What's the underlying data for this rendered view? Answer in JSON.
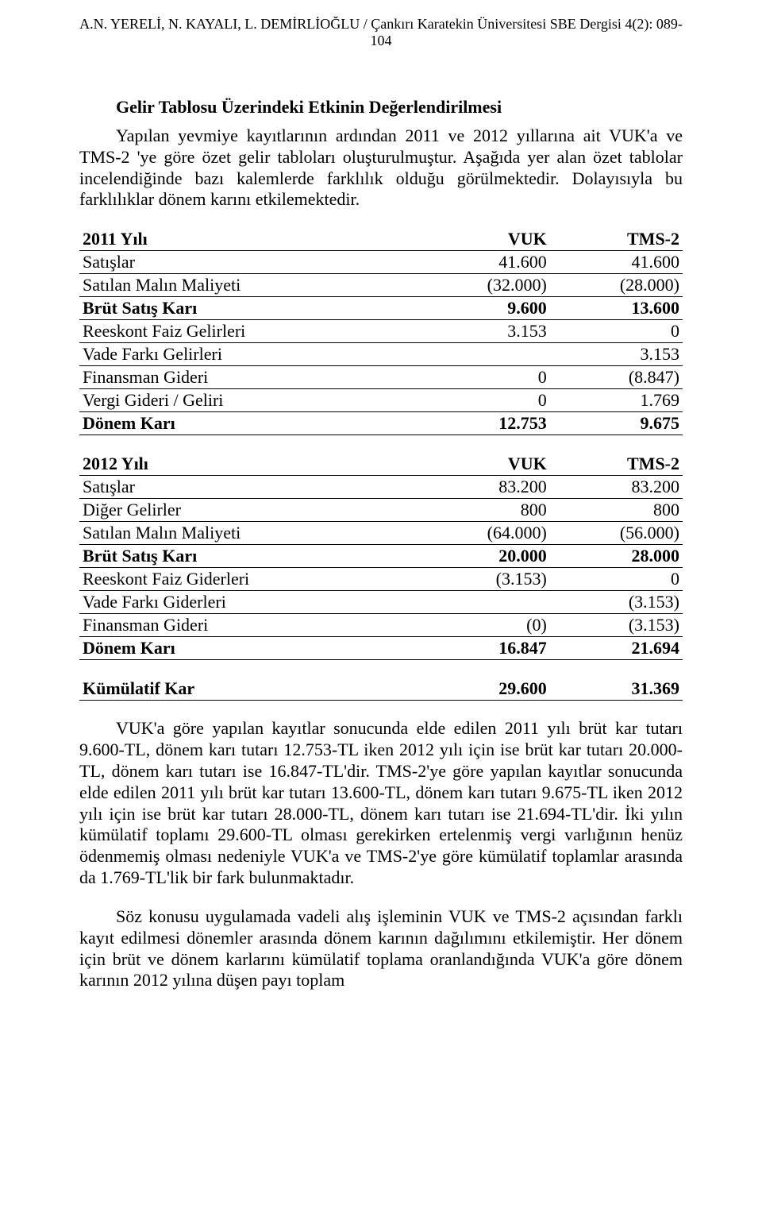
{
  "header": {
    "text": "A.N. YERELİ, N. KAYALI, L. DEMİRLİOĞLU / Çankırı Karatekin Üniversitesi SBE Dergisi 4(2): 089-104"
  },
  "section": {
    "title": "Gelir Tablosu Üzerindeki Etkinin Değerlendirilmesi",
    "intro": "Yapılan yevmiye kayıtlarının ardından 2011 ve 2012 yıllarına ait VUK'a ve TMS-2 'ye göre özet gelir tabloları oluşturulmuştur. Aşağıda yer alan özet tablolar incelendiğinde bazı kalemlerde farklılık olduğu görülmektedir. Dolayısıyla bu farklılıklar dönem karını etkilemektedir."
  },
  "table2011": {
    "title": "2011 Yılı",
    "col1": "VUK",
    "col2": "TMS-2",
    "rows": [
      {
        "label": "Satışlar",
        "v1": "41.600",
        "v2": "41.600",
        "bold": false
      },
      {
        "label": "Satılan Malın Maliyeti",
        "v1": "(32.000)",
        "v2": "(28.000)",
        "bold": false
      },
      {
        "label": "Brüt Satış Karı",
        "v1": "9.600",
        "v2": "13.600",
        "bold": true
      },
      {
        "label": "Reeskont Faiz Gelirleri",
        "v1": "3.153",
        "v2": "0",
        "bold": false
      },
      {
        "label": "Vade Farkı Gelirleri",
        "v1": "",
        "v2": "3.153",
        "bold": false
      },
      {
        "label": "Finansman Gideri",
        "v1": "0",
        "v2": "(8.847)",
        "bold": false
      },
      {
        "label": "Vergi Gideri / Geliri",
        "v1": "0",
        "v2": "1.769",
        "bold": false
      },
      {
        "label": "Dönem Karı",
        "v1": "12.753",
        "v2": "9.675",
        "bold": true
      }
    ]
  },
  "table2012": {
    "title": "2012 Yılı",
    "col1": "VUK",
    "col2": "TMS-2",
    "rows": [
      {
        "label": "Satışlar",
        "v1": "83.200",
        "v2": "83.200",
        "bold": false
      },
      {
        "label": "Diğer Gelirler",
        "v1": "800",
        "v2": "800",
        "bold": false
      },
      {
        "label": "Satılan Malın Maliyeti",
        "v1": "(64.000)",
        "v2": "(56.000)",
        "bold": false
      },
      {
        "label": "Brüt Satış Karı",
        "v1": "20.000",
        "v2": "28.000",
        "bold": true
      },
      {
        "label": "Reeskont Faiz Giderleri",
        "v1": "(3.153)",
        "v2": "0",
        "bold": false
      },
      {
        "label": "Vade Farkı Giderleri",
        "v1": "",
        "v2": "(3.153)",
        "bold": false
      },
      {
        "label": "Finansman Gideri",
        "v1": "(0)",
        "v2": "(3.153)",
        "bold": false
      },
      {
        "label": "Dönem Karı",
        "v1": "16.847",
        "v2": "21.694",
        "bold": true
      }
    ]
  },
  "tableKumulatif": {
    "rows": [
      {
        "label": "Kümülatif Kar",
        "v1": "29.600",
        "v2": "31.369",
        "bold": true
      }
    ]
  },
  "para1": "VUK'a göre yapılan kayıtlar sonucunda elde edilen 2011 yılı brüt kar tutarı 9.600-TL, dönem karı tutarı 12.753-TL iken 2012 yılı için ise brüt kar tutarı 20.000-TL, dönem karı tutarı ise 16.847-TL'dir. TMS-2'ye göre yapılan kayıtlar sonucunda elde edilen 2011 yılı brüt kar tutarı 13.600-TL, dönem karı tutarı 9.675-TL iken 2012 yılı için ise brüt kar tutarı 28.000-TL, dönem karı tutarı ise 21.694-TL'dir. İki yılın kümülatif toplamı 29.600-TL olması gerekirken ertelenmiş vergi varlığının henüz ödenmemiş olması nedeniyle VUK'a ve TMS-2'ye göre kümülatif toplamlar arasında da 1.769-TL'lik bir fark bulunmaktadır.",
  "para2": "Söz konusu uygulamada vadeli alış işleminin VUK ve TMS-2 açısından farklı kayıt edilmesi dönemler arasında dönem karının dağılımını etkilemiştir. Her dönem için brüt ve dönem karlarını kümülatif toplama oranlandığında VUK'a göre dönem karının 2012 yılına düşen payı toplam"
}
